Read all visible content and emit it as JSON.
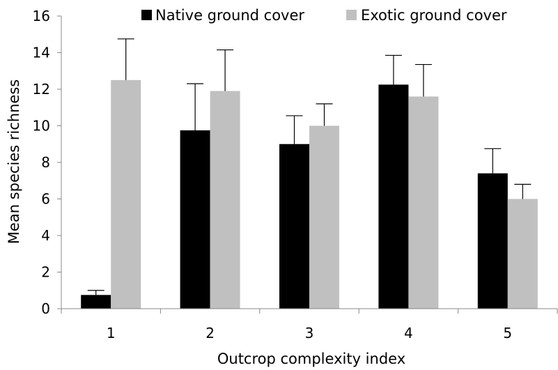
{
  "chart_data": {
    "type": "bar",
    "title": "",
    "xlabel": "Outcrop complexity index",
    "ylabel": "Mean species richness",
    "categories": [
      "1",
      "2",
      "3",
      "4",
      "5"
    ],
    "ylim": [
      0,
      16
    ],
    "yticks": [
      0,
      2,
      4,
      6,
      8,
      10,
      12,
      14,
      16
    ],
    "grid": false,
    "legend_position": "top",
    "series": [
      {
        "name": "Native ground cover",
        "color": "#000000",
        "values": [
          0.75,
          9.75,
          9.0,
          12.25,
          7.4
        ],
        "error_upper": [
          1.0,
          12.3,
          10.55,
          13.85,
          8.75
        ]
      },
      {
        "name": "Exotic ground cover",
        "color": "#c0c0c0",
        "values": [
          12.5,
          11.9,
          10.0,
          11.6,
          6.0
        ],
        "error_upper": [
          14.75,
          14.15,
          11.2,
          13.35,
          6.8
        ]
      }
    ]
  }
}
